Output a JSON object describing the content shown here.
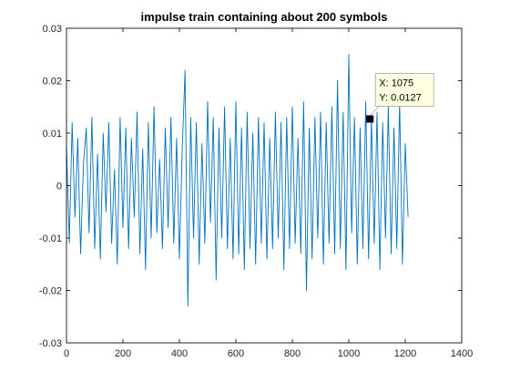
{
  "chart_data": {
    "type": "line",
    "title": "impulse train containing about 200 symbols",
    "xlabel": "",
    "ylabel": "",
    "xlim": [
      0,
      1400
    ],
    "ylim": [
      -0.03,
      0.03
    ],
    "x_ticks": [
      0,
      200,
      400,
      600,
      800,
      1000,
      1200,
      1400
    ],
    "y_ticks": [
      0.03,
      0.02,
      0.01,
      0,
      -0.01,
      -0.02,
      -0.03
    ],
    "x_tick_labels": [
      "0",
      "200",
      "400",
      "600",
      "800",
      "1000",
      "1200",
      "1400"
    ],
    "y_tick_labels": [
      "0.03",
      "0.02",
      "0.01",
      "0",
      "-0.01",
      "-0.02",
      "-0.03"
    ],
    "grid": false,
    "series": [
      {
        "color": "#0072BD",
        "x": [
          0,
          10,
          20,
          30,
          40,
          50,
          60,
          70,
          80,
          90,
          100,
          110,
          120,
          130,
          140,
          150,
          160,
          170,
          180,
          190,
          200,
          210,
          220,
          230,
          240,
          250,
          260,
          270,
          280,
          290,
          300,
          310,
          320,
          330,
          340,
          350,
          360,
          370,
          380,
          390,
          400,
          410,
          420,
          430,
          440,
          450,
          460,
          470,
          480,
          490,
          500,
          510,
          520,
          530,
          540,
          550,
          560,
          570,
          580,
          590,
          600,
          610,
          620,
          630,
          640,
          650,
          660,
          670,
          680,
          690,
          700,
          710,
          720,
          730,
          740,
          750,
          760,
          770,
          780,
          790,
          800,
          810,
          820,
          830,
          840,
          850,
          860,
          870,
          880,
          890,
          900,
          910,
          920,
          930,
          940,
          950,
          960,
          970,
          980,
          990,
          1000,
          1010,
          1020,
          1030,
          1040,
          1050,
          1060,
          1070,
          1080,
          1090,
          1100,
          1110,
          1120,
          1130,
          1140,
          1150,
          1160,
          1170,
          1180,
          1190,
          1200,
          1210
        ],
        "y": [
          0.008,
          -0.011,
          0.012,
          -0.006,
          0.009,
          -0.013,
          0.004,
          0.011,
          -0.009,
          0.013,
          -0.012,
          0.006,
          -0.014,
          0.01,
          -0.005,
          0.012,
          -0.011,
          0.003,
          -0.015,
          0.013,
          -0.008,
          0.011,
          -0.012,
          0.009,
          -0.006,
          0.014,
          -0.013,
          0.007,
          -0.016,
          0.012,
          -0.01,
          0.015,
          -0.009,
          0.005,
          -0.012,
          0.011,
          -0.008,
          0.013,
          -0.011,
          0.009,
          -0.014,
          0.007,
          0.022,
          -0.023,
          0.013,
          -0.01,
          0.012,
          -0.015,
          0.008,
          -0.011,
          0.016,
          -0.007,
          0.013,
          -0.018,
          0.011,
          -0.01,
          0.015,
          -0.012,
          0.009,
          -0.014,
          0.016,
          -0.013,
          0.011,
          -0.016,
          0.014,
          -0.012,
          0.01,
          -0.015,
          0.013,
          -0.011,
          0.012,
          -0.014,
          0.009,
          -0.012,
          0.014,
          -0.01,
          0.012,
          -0.016,
          0.013,
          -0.012,
          0.015,
          -0.011,
          0.009,
          -0.013,
          0.016,
          -0.02,
          0.011,
          -0.014,
          0.013,
          -0.01,
          0.014,
          -0.015,
          0.012,
          -0.011,
          0.015,
          -0.013,
          0.02,
          -0.012,
          0.014,
          -0.016,
          0.025,
          -0.009,
          0.013,
          -0.015,
          0.011,
          -0.012,
          0.016,
          -0.014,
          0.0127,
          -0.011,
          0.014,
          -0.016,
          0.012,
          -0.01,
          0.015,
          -0.013,
          0.011,
          -0.012,
          0.016,
          -0.015,
          0.008,
          -0.006
        ]
      }
    ],
    "data_tip": {
      "x": 1075,
      "y": 0.0127,
      "x_text": "X: 1075",
      "y_text": "Y: 0.0127"
    }
  }
}
